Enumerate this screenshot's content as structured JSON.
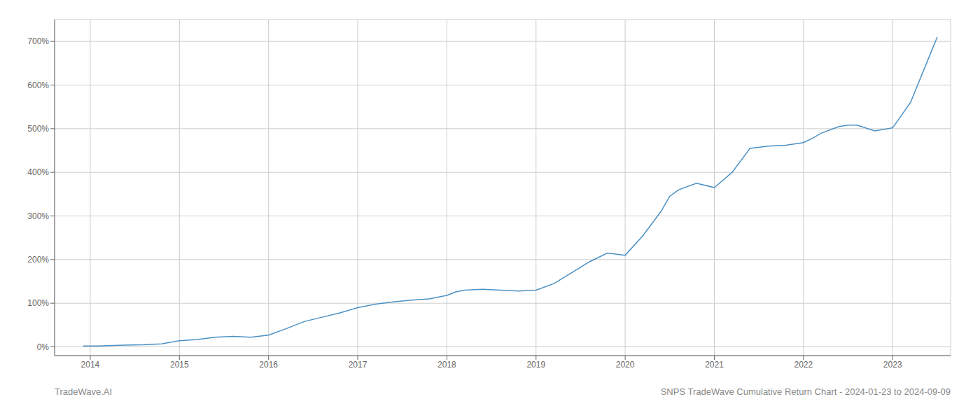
{
  "chart_data": {
    "type": "line",
    "title": "SNPS TradeWave Cumulative Return Chart - 2024-01-23 to 2024-09-09",
    "annotations": [
      "TradeWave.AI"
    ],
    "x": [
      2013.92,
      2014.0,
      2014.1,
      2014.2,
      2014.4,
      2014.6,
      2014.8,
      2015.0,
      2015.2,
      2015.4,
      2015.6,
      2015.8,
      2016.0,
      2016.2,
      2016.4,
      2016.6,
      2016.8,
      2017.0,
      2017.2,
      2017.4,
      2017.6,
      2017.8,
      2018.0,
      2018.1,
      2018.2,
      2018.4,
      2018.6,
      2018.8,
      2019.0,
      2019.2,
      2019.4,
      2019.6,
      2019.8,
      2020.0,
      2020.2,
      2020.4,
      2020.5,
      2020.6,
      2020.8,
      2021.0,
      2021.2,
      2021.4,
      2021.6,
      2021.8,
      2022.0,
      2022.1,
      2022.2,
      2022.4,
      2022.5,
      2022.6,
      2022.8,
      2023.0,
      2023.2,
      2023.4,
      2023.5
    ],
    "values": [
      2,
      2,
      2,
      3,
      4,
      5,
      7,
      14,
      17,
      22,
      24,
      22,
      27,
      42,
      58,
      68,
      78,
      90,
      98,
      103,
      107,
      110,
      118,
      126,
      130,
      132,
      130,
      128,
      130,
      145,
      170,
      195,
      215,
      210,
      255,
      310,
      345,
      360,
      375,
      365,
      400,
      455,
      460,
      462,
      468,
      478,
      490,
      505,
      508,
      508,
      495,
      502,
      560,
      660,
      710
    ],
    "color": "#4a90c4",
    "xlim": [
      2013.6,
      2023.65
    ],
    "xticks": [
      2014,
      2015,
      2016,
      2017,
      2018,
      2019,
      2020,
      2021,
      2022,
      2023
    ],
    "ylim": [
      -20,
      750
    ],
    "yticks": [
      {
        "value": 0,
        "label": "0%"
      },
      {
        "value": 100,
        "label": "100%"
      },
      {
        "value": 200,
        "label": "200%"
      },
      {
        "value": 300,
        "label": "300%"
      },
      {
        "value": 400,
        "label": "400%"
      },
      {
        "value": 500,
        "label": "500%"
      },
      {
        "value": 600,
        "label": "600%"
      },
      {
        "value": 700,
        "label": "700%"
      }
    ],
    "grid": true
  }
}
